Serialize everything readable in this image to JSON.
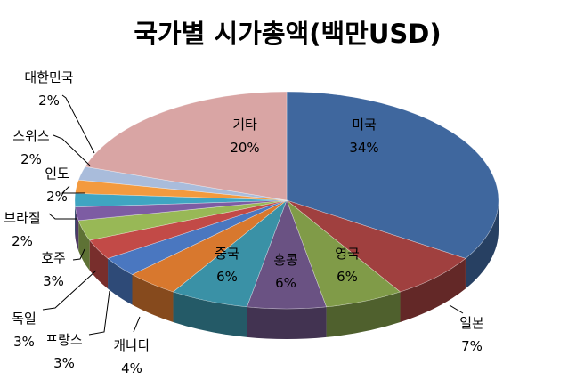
{
  "chart_data": {
    "type": "pie",
    "title": "국가별 시가총액(백만USD)",
    "legend": "none",
    "slices": [
      {
        "label": "미국",
        "value": 34,
        "pct_label": "34%",
        "color": "#3F679E"
      },
      {
        "label": "일본",
        "value": 7,
        "pct_label": "7%",
        "color": "#A0403F"
      },
      {
        "label": "영국",
        "value": 6,
        "pct_label": "6%",
        "color": "#809B48"
      },
      {
        "label": "홍콩",
        "value": 6,
        "pct_label": "6%",
        "color": "#6A5283"
      },
      {
        "label": "중국",
        "value": 6,
        "pct_label": "6%",
        "color": "#3A91A6"
      },
      {
        "label": "캐나다",
        "value": 4,
        "pct_label": "4%",
        "color": "#D8782E"
      },
      {
        "label": "프랑스",
        "value": 3,
        "pct_label": "3%",
        "color": "#4A77C0"
      },
      {
        "label": "독일",
        "value": 3,
        "pct_label": "3%",
        "color": "#C24A47"
      },
      {
        "label": "호주",
        "value": 3,
        "pct_label": "3%",
        "color": "#98B856"
      },
      {
        "label": "브라질",
        "value": 2,
        "pct_label": "2%",
        "color": "#7D5CA3"
      },
      {
        "label": "인도",
        "value": 2,
        "pct_label": "2%",
        "color": "#3FA5C2"
      },
      {
        "label": "스위스",
        "value": 2,
        "pct_label": "2%",
        "color": "#F39A3E"
      },
      {
        "label": "대한민국",
        "value": 2,
        "pct_label": "2%",
        "color": "#A9BCDB"
      },
      {
        "label": "기타",
        "value": 20,
        "pct_label": "20%",
        "color": "#D9A5A4"
      }
    ]
  }
}
